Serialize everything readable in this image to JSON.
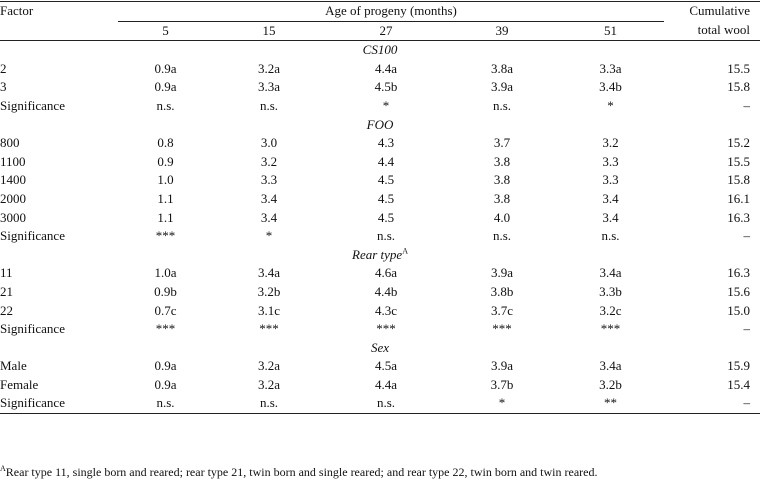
{
  "header": {
    "factor": "Factor",
    "age_group": "Age of progeny (months)",
    "ages": [
      "5",
      "15",
      "27",
      "39",
      "51"
    ],
    "cumulative_line1": "Cumulative",
    "cumulative_line2": "total wool"
  },
  "sections": [
    {
      "title": "CS100",
      "sup": "",
      "rows": [
        {
          "factor": "2",
          "values": [
            "0.9a",
            "3.2a",
            "4.4a",
            "3.8a",
            "3.3a"
          ],
          "cum": "15.5"
        },
        {
          "factor": "3",
          "values": [
            "0.9a",
            "3.3a",
            "4.5b",
            "3.9a",
            "3.4b"
          ],
          "cum": "15.8"
        },
        {
          "factor": "Significance",
          "values": [
            "n.s.",
            "n.s.",
            "*",
            "n.s.",
            "*"
          ],
          "cum": "–"
        }
      ]
    },
    {
      "title": "FOO",
      "sup": "",
      "rows": [
        {
          "factor": "800",
          "values": [
            "0.8",
            "3.0",
            "4.3",
            "3.7",
            "3.2"
          ],
          "cum": "15.2"
        },
        {
          "factor": "1100",
          "values": [
            "0.9",
            "3.2",
            "4.4",
            "3.8",
            "3.3"
          ],
          "cum": "15.5"
        },
        {
          "factor": "1400",
          "values": [
            "1.0",
            "3.3",
            "4.5",
            "3.8",
            "3.3"
          ],
          "cum": "15.8"
        },
        {
          "factor": "2000",
          "values": [
            "1.1",
            "3.4",
            "4.5",
            "3.8",
            "3.4"
          ],
          "cum": "16.1"
        },
        {
          "factor": "3000",
          "values": [
            "1.1",
            "3.4",
            "4.5",
            "4.0",
            "3.4"
          ],
          "cum": "16.3"
        },
        {
          "factor": "Significance",
          "values": [
            "***",
            "*",
            "n.s.",
            "n.s.",
            "n.s."
          ],
          "cum": "–"
        }
      ]
    },
    {
      "title": "Rear type",
      "sup": "A",
      "rows": [
        {
          "factor": "11",
          "values": [
            "1.0a",
            "3.4a",
            "4.6a",
            "3.9a",
            "3.4a"
          ],
          "cum": "16.3"
        },
        {
          "factor": "21",
          "values": [
            "0.9b",
            "3.2b",
            "4.4b",
            "3.8b",
            "3.3b"
          ],
          "cum": "15.6"
        },
        {
          "factor": "22",
          "values": [
            "0.7c",
            "3.1c",
            "4.3c",
            "3.7c",
            "3.2c"
          ],
          "cum": "15.0"
        },
        {
          "factor": "Significance",
          "values": [
            "***",
            "***",
            "***",
            "***",
            "***"
          ],
          "cum": "–"
        }
      ]
    },
    {
      "title": "Sex",
      "sup": "",
      "rows": [
        {
          "factor": "Male",
          "values": [
            "0.9a",
            "3.2a",
            "4.5a",
            "3.9a",
            "3.4a"
          ],
          "cum": "15.9"
        },
        {
          "factor": "Female",
          "values": [
            "0.9a",
            "3.2a",
            "4.4a",
            "3.7b",
            "3.2b"
          ],
          "cum": "15.4"
        },
        {
          "factor": "Significance",
          "values": [
            "n.s.",
            "n.s.",
            "n.s.",
            "*",
            "**"
          ],
          "cum": "–"
        }
      ]
    }
  ],
  "footnote": {
    "marker": "A",
    "text": "Rear type 11, single born and reared; rear type 21, twin born and single reared; and rear type 22, twin born and twin reared."
  }
}
